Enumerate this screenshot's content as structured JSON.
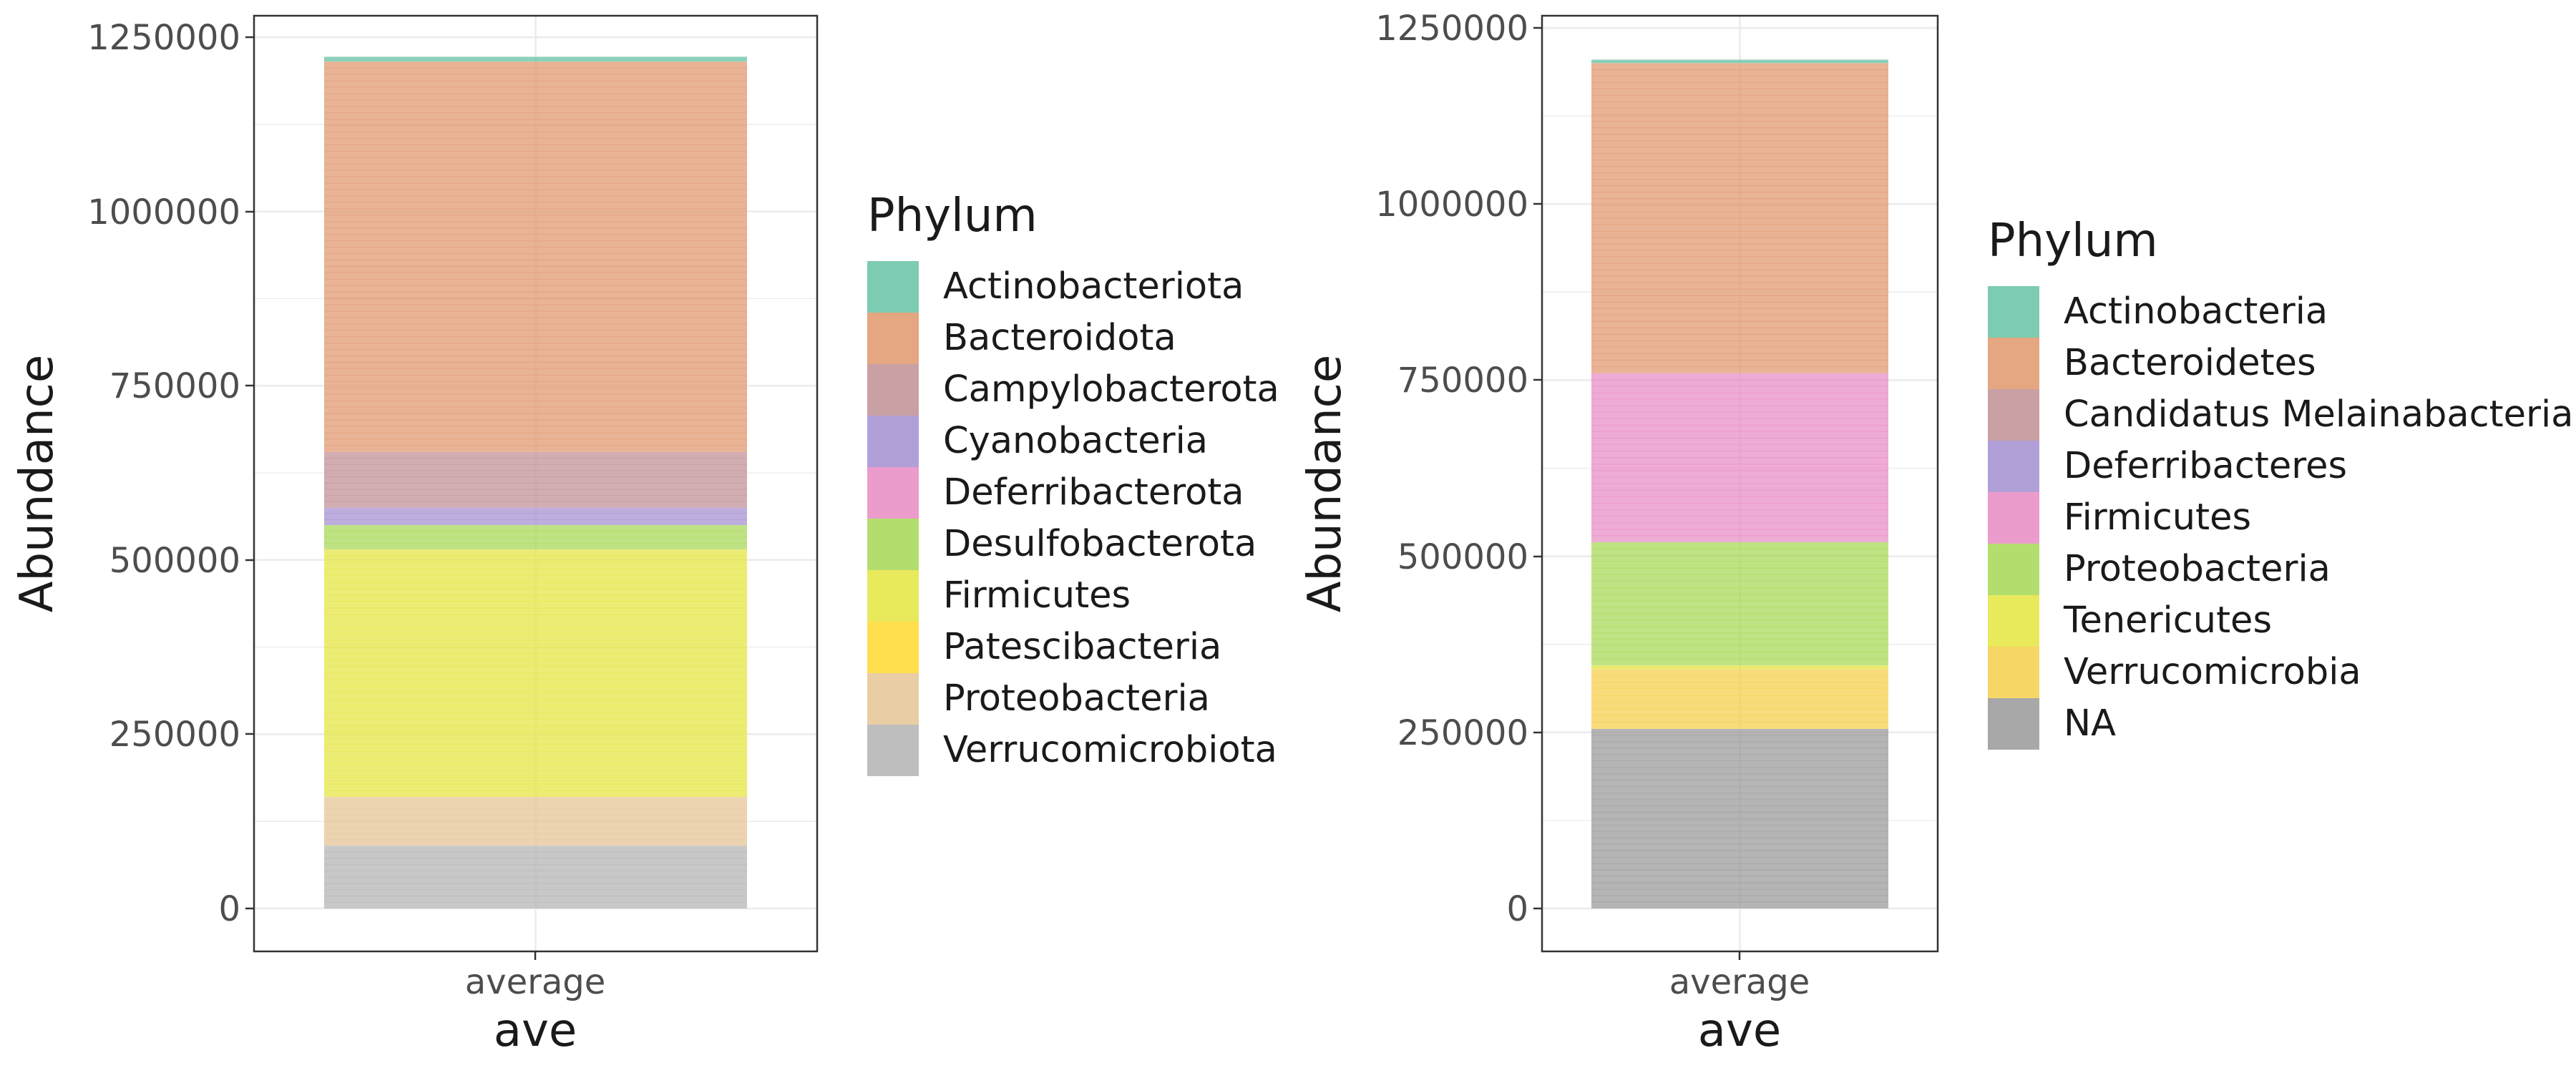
{
  "chart_data": [
    {
      "type": "bar",
      "stacked": true,
      "xlabel": "ave",
      "ylabel": "Abundance",
      "categories": [
        "average"
      ],
      "y_ticks": [
        "0",
        "250000",
        "500000",
        "750000",
        "1000000",
        "1250000"
      ],
      "ylim": [
        0,
        1250000
      ],
      "legend_title": "Phylum",
      "legend_position": "right",
      "series": [
        {
          "name": "Verrucomicrobiota",
          "color": "#b3b3b3",
          "values": [
            90000
          ]
        },
        {
          "name": "Proteobacteria",
          "color": "#e5c494",
          "values": [
            70000
          ]
        },
        {
          "name": "Patescibacteria",
          "color": "#ffd92f",
          "values": [
            0
          ]
        },
        {
          "name": "Firmicutes",
          "color": "#e5e540",
          "values": [
            355000
          ]
        },
        {
          "name": "Desulfobacterota",
          "color": "#a6d854",
          "values": [
            35000
          ]
        },
        {
          "name": "Deferribacterota",
          "color": "#e78ac3",
          "values": [
            0
          ]
        },
        {
          "name": "Cyanobacteria",
          "color": "#a38fd0",
          "values": [
            25000
          ]
        },
        {
          "name": "Campylobacterota",
          "color": "#c08f94",
          "values": [
            80000
          ]
        },
        {
          "name": "Bacteroidota",
          "color": "#e0966c",
          "values": [
            560000
          ]
        },
        {
          "name": "Actinobacteriota",
          "color": "#66c2a5",
          "values": [
            7000
          ]
        }
      ]
    },
    {
      "type": "bar",
      "stacked": true,
      "xlabel": "ave",
      "ylabel": "Abundance",
      "categories": [
        "average"
      ],
      "y_ticks": [
        "0",
        "250000",
        "500000",
        "750000",
        "1000000",
        "1250000"
      ],
      "ylim": [
        0,
        1250000
      ],
      "legend_title": "Phylum",
      "legend_position": "right",
      "series": [
        {
          "name": "NA",
          "color": "#999999",
          "values": [
            255000
          ]
        },
        {
          "name": "Verrucomicrobia",
          "color": "#f5cf4a",
          "values": [
            85000
          ]
        },
        {
          "name": "Tenericutes",
          "color": "#e5e540",
          "values": [
            5000
          ]
        },
        {
          "name": "Proteobacteria",
          "color": "#a6d854",
          "values": [
            175000
          ]
        },
        {
          "name": "Firmicutes",
          "color": "#e78ac3",
          "values": [
            240000
          ]
        },
        {
          "name": "Deferribacteres",
          "color": "#a38fd0",
          "values": [
            0
          ]
        },
        {
          "name": "Candidatus Melainabacteria",
          "color": "#c08f94",
          "values": [
            0
          ]
        },
        {
          "name": "Bacteroidetes",
          "color": "#e0966c",
          "values": [
            440000
          ]
        },
        {
          "name": "Actinobacteria",
          "color": "#66c2a5",
          "values": [
            5000
          ]
        }
      ]
    }
  ]
}
